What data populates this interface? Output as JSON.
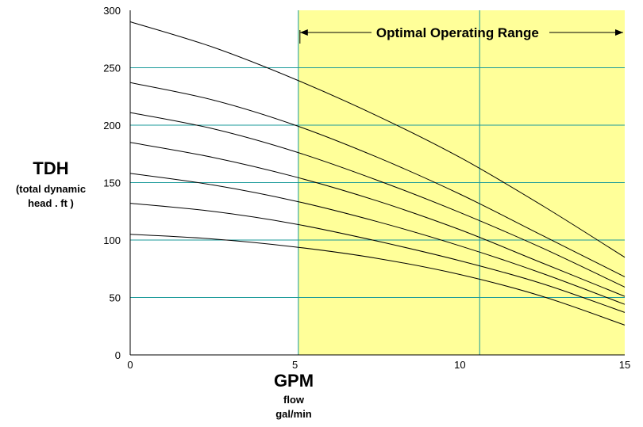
{
  "chart_data": {
    "type": "line",
    "title": "",
    "ylabel": "TDH",
    "ylabel_sub_1": "(total dynamic",
    "ylabel_sub_2": "head . ft )",
    "xlabel": "GPM",
    "xlabel_sub_1": "flow",
    "xlabel_sub_2": "gal/min",
    "xlim": [
      0,
      15
    ],
    "ylim": [
      0,
      300
    ],
    "x_ticks": [
      0,
      5,
      10,
      15
    ],
    "y_ticks": [
      0,
      50,
      100,
      150,
      200,
      250,
      300
    ],
    "grid": true,
    "gridlines_y": [
      50,
      100,
      150,
      200,
      250
    ],
    "gridlines_x": [
      5.1,
      10.6
    ],
    "optimal_range": {
      "x_start": 5.1,
      "x_end": 15,
      "label": "Optimal Operating Range",
      "color": "#ffff99"
    },
    "grid_color": "#1a9a9a",
    "line_color": "#000000",
    "series": [
      {
        "x": [
          0,
          2.5,
          5,
          7.5,
          10,
          12.5,
          15
        ],
        "values": [
          290,
          268,
          240,
          208,
          172,
          130,
          85
        ]
      },
      {
        "x": [
          0,
          2.5,
          5,
          7.5,
          10,
          12.5,
          15
        ],
        "values": [
          237,
          222,
          200,
          172,
          140,
          104,
          68
        ]
      },
      {
        "x": [
          0,
          2.5,
          5,
          7.5,
          10,
          12.5,
          15
        ],
        "values": [
          211,
          197,
          177,
          152,
          124,
          93,
          59
        ]
      },
      {
        "x": [
          0,
          2.5,
          5,
          7.5,
          10,
          12.5,
          15
        ],
        "values": [
          185,
          172,
          155,
          134,
          109,
          80,
          51
        ]
      },
      {
        "x": [
          0,
          2.5,
          5,
          7.5,
          10,
          12.5,
          15
        ],
        "values": [
          158,
          148,
          134,
          116,
          95,
          71,
          44
        ]
      },
      {
        "x": [
          0,
          2.5,
          5,
          7.5,
          10,
          12.5,
          15
        ],
        "values": [
          132,
          125,
          114,
          99,
          82,
          62,
          37
        ]
      },
      {
        "x": [
          0,
          2.5,
          5,
          7.5,
          10,
          12.5,
          15
        ],
        "values": [
          105,
          101,
          94,
          84,
          70,
          51,
          26
        ]
      }
    ]
  }
}
